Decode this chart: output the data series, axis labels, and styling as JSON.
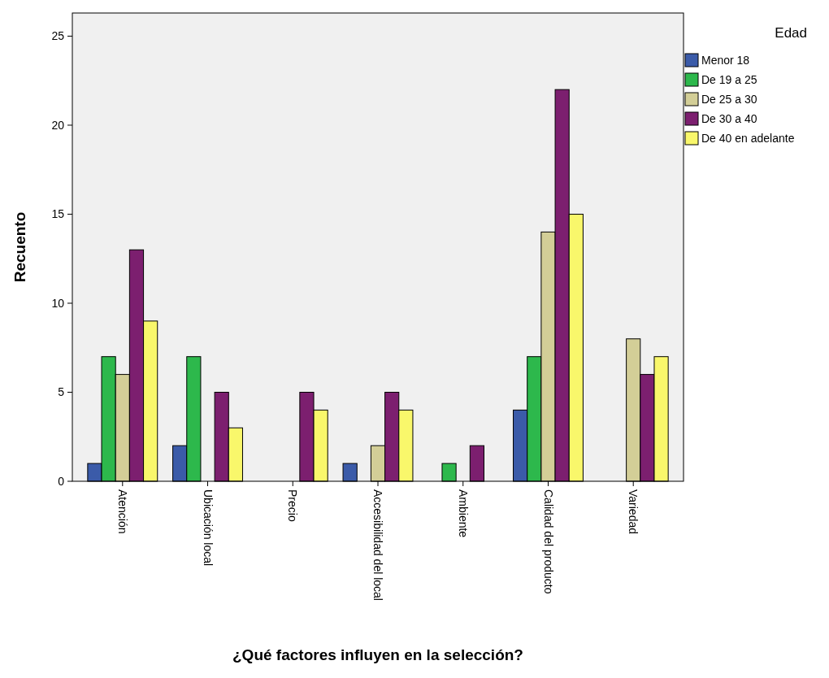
{
  "chart_data": {
    "type": "bar",
    "xlabel": "¿Qué factores influyen en la selección?",
    "ylabel": "Recuento",
    "legend_title": "Edad",
    "legend": "right",
    "grid": false,
    "categories": [
      "Atención",
      "Ubicación local",
      "Precio",
      "Accesibilidad del local",
      "Ambiente",
      "Calidad del producto",
      "Variedad"
    ],
    "ylim": [
      0,
      26.3
    ],
    "yticks": [
      0,
      5,
      10,
      15,
      20,
      25
    ],
    "series": [
      {
        "name": "Menor 18",
        "color": "#3b5ba9",
        "values": [
          1,
          2,
          null,
          1,
          null,
          4,
          null
        ]
      },
      {
        "name": "De 19 a 25",
        "color": "#2db84c",
        "values": [
          7,
          7,
          null,
          null,
          1,
          7,
          null
        ]
      },
      {
        "name": "De 25 a 30",
        "color": "#d3ce97",
        "values": [
          6,
          null,
          null,
          2,
          null,
          14,
          8
        ]
      },
      {
        "name": "De 30 a 40",
        "color": "#7c1f6f",
        "values": [
          13,
          5,
          5,
          5,
          2,
          22,
          6
        ]
      },
      {
        "name": "De 40 en adelante",
        "color": "#f9f76b",
        "values": [
          9,
          3,
          4,
          4,
          null,
          15,
          7
        ]
      }
    ]
  }
}
